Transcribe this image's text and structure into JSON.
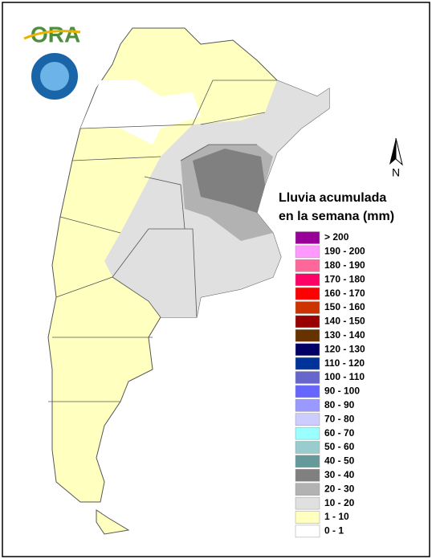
{
  "logo": {
    "text": "ORA"
  },
  "north_label": "N",
  "legend": {
    "title": [
      "Lluvia acumulada",
      "en la semana (mm)"
    ],
    "items": [
      {
        "label": "> 200",
        "color": "#990099"
      },
      {
        "label": "190 - 200",
        "color": "#ff99ff"
      },
      {
        "label": "180 - 190",
        "color": "#ff6699"
      },
      {
        "label": "170 - 180",
        "color": "#ff0066"
      },
      {
        "label": "160 - 170",
        "color": "#ff0000"
      },
      {
        "label": "150 - 160",
        "color": "#cc3300"
      },
      {
        "label": "140 - 150",
        "color": "#990000"
      },
      {
        "label": "130 - 140",
        "color": "#663300"
      },
      {
        "label": "120 - 130",
        "color": "#000066"
      },
      {
        "label": "110 - 120",
        "color": "#003399"
      },
      {
        "label": "100 - 110",
        "color": "#6666cc"
      },
      {
        "label": "90 - 100",
        "color": "#6666ff"
      },
      {
        "label": "80 - 90",
        "color": "#9999ff"
      },
      {
        "label": "70 - 80",
        "color": "#ccccff"
      },
      {
        "label": "60 - 70",
        "color": "#99ffff"
      },
      {
        "label": "50 - 60",
        "color": "#99cccc"
      },
      {
        "label": "40 - 50",
        "color": "#669999"
      },
      {
        "label": "30 - 40",
        "color": "#808080"
      },
      {
        "label": "20 - 30",
        "color": "#b2b2b2"
      },
      {
        "label": "10 - 20",
        "color": "#e0e0e0"
      },
      {
        "label": "1 - 10",
        "color": "#ffffc0"
      },
      {
        "label": "0 - 1",
        "color": "#ffffff"
      }
    ]
  }
}
